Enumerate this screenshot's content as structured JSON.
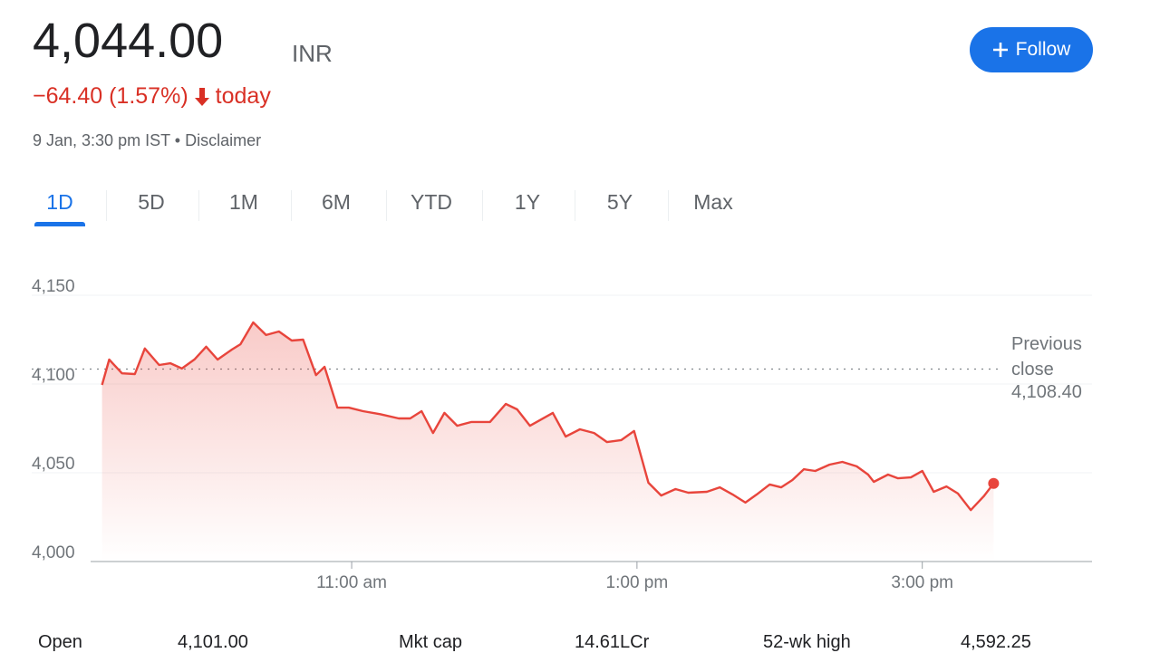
{
  "header": {
    "price": "4,044.00",
    "currency": "INR",
    "change": "−64.40 (1.57%)",
    "change_period": "today",
    "timestamp": "9 Jan, 3:30 pm IST",
    "separator": "•",
    "disclaimer": "Disclaimer"
  },
  "follow_button": "Follow",
  "tabs": [
    "1D",
    "5D",
    "1M",
    "6M",
    "YTD",
    "1Y",
    "5Y",
    "Max"
  ],
  "active_tab": 0,
  "chart_data": {
    "type": "line",
    "color": "#e8453c",
    "grid": true,
    "x": [
      9.25,
      9.3,
      9.39,
      9.48,
      9.55,
      9.65,
      9.73,
      9.81,
      9.9,
      9.98,
      10.06,
      10.16,
      10.22,
      10.31,
      10.4,
      10.49,
      10.58,
      10.66,
      10.75,
      10.81,
      10.9,
      10.98,
      11.08,
      11.2,
      11.33,
      11.41,
      11.49,
      11.57,
      11.65,
      11.74,
      11.84,
      11.97,
      12.08,
      12.16,
      12.25,
      12.41,
      12.5,
      12.6,
      12.7,
      12.79,
      12.89,
      12.98,
      13.08,
      13.17,
      13.27,
      13.36,
      13.49,
      13.58,
      13.67,
      13.76,
      13.84,
      13.93,
      14.01,
      14.09,
      14.17,
      14.25,
      14.35,
      14.44,
      14.54,
      14.62,
      14.66,
      14.76,
      14.83,
      14.92,
      15.0,
      15.08,
      15.17,
      15.25,
      15.34,
      15.43,
      15.5
    ],
    "values": [
      4099.5,
      4113.8,
      4106.0,
      4105.6,
      4120.0,
      4110.7,
      4111.7,
      4108.7,
      4114.0,
      4121.0,
      4113.8,
      4119.4,
      4122.4,
      4134.7,
      4127.6,
      4129.6,
      4124.5,
      4125.0,
      4105.0,
      4109.7,
      4086.7,
      4086.7,
      4084.7,
      4083.0,
      4080.6,
      4080.6,
      4084.7,
      4072.4,
      4083.7,
      4076.5,
      4078.6,
      4078.6,
      4088.8,
      4085.7,
      4076.5,
      4083.7,
      4070.4,
      4074.5,
      4072.4,
      4067.3,
      4068.4,
      4073.5,
      4044.4,
      4037.2,
      4040.8,
      4038.8,
      4039.3,
      4041.8,
      4037.8,
      4033.2,
      4037.8,
      4043.4,
      4041.8,
      4045.9,
      4052.0,
      4051.0,
      4054.6,
      4056.1,
      4053.6,
      4049.0,
      4044.9,
      4049.0,
      4046.9,
      4047.4,
      4051.0,
      4039.3,
      4042.3,
      4038.3,
      4029.0,
      4036.7,
      4044.0
    ],
    "xlim": [
      9.17,
      16.19
    ],
    "xticks": [
      {
        "value": 11,
        "label": "11:00 am"
      },
      {
        "value": 13,
        "label": "1:00 pm"
      },
      {
        "value": 15,
        "label": "3:00 pm"
      }
    ],
    "ylim": [
      4000,
      4150
    ],
    "yticks": [
      {
        "value": 4000,
        "label": "4,000"
      },
      {
        "value": 4050,
        "label": "4,050"
      },
      {
        "value": 4100,
        "label": "4,100"
      },
      {
        "value": 4150,
        "label": "4,150"
      }
    ],
    "reference_line": {
      "label": "Previous close",
      "value": 4108.4,
      "value_label": "4,108.40"
    }
  },
  "stats": [
    {
      "label": "Open",
      "value": "4,101.00"
    },
    {
      "label": "Mkt cap",
      "value": "14.61LCr"
    },
    {
      "label": "52-wk high",
      "value": "4,592.25"
    }
  ]
}
